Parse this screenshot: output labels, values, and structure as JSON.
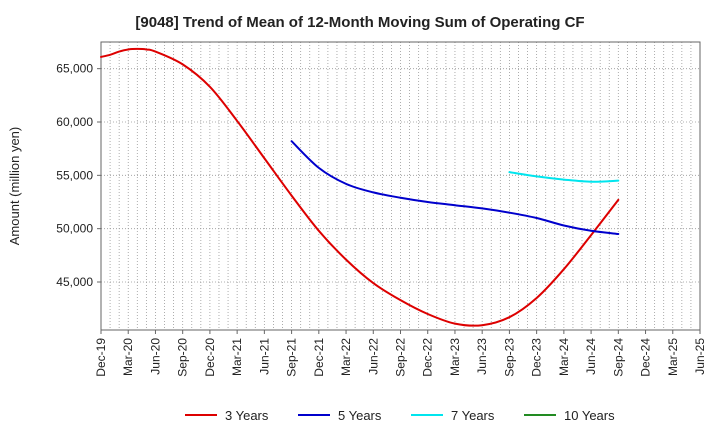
{
  "chart_data": {
    "type": "line",
    "title": "[9048]  Trend of Mean of 12-Month Moving Sum of Operating CF",
    "xlabel": "",
    "ylabel": "Amount (million yen)",
    "ylim": [
      40500,
      67500
    ],
    "yticks": [
      45000,
      50000,
      55000,
      60000,
      65000
    ],
    "ytick_labels": [
      "45,000",
      "50,000",
      "55,000",
      "60,000",
      "65,000"
    ],
    "x_range": [
      0,
      66
    ],
    "xticks": [
      0,
      3,
      6,
      9,
      12,
      15,
      18,
      21,
      24,
      27,
      30,
      33,
      36,
      39,
      42,
      45,
      48,
      51,
      54,
      57,
      60,
      63,
      66
    ],
    "xtick_labels": [
      "Dec-19",
      "Mar-20",
      "Jun-20",
      "Sep-20",
      "Dec-20",
      "Mar-21",
      "Jun-21",
      "Sep-21",
      "Dec-21",
      "Mar-22",
      "Jun-22",
      "Sep-22",
      "Dec-22",
      "Mar-23",
      "Jun-23",
      "Sep-23",
      "Dec-23",
      "Mar-24",
      "Jun-24",
      "Sep-24",
      "Dec-24",
      "Mar-25",
      "Jun-25"
    ],
    "grid": true,
    "legend_position": "bottom",
    "series": [
      {
        "name": "3 Years",
        "color": "#dd0000",
        "x": [
          0,
          1,
          2,
          3,
          4,
          5,
          6,
          9,
          12,
          15,
          18,
          21,
          24,
          27,
          30,
          33,
          36,
          39,
          42,
          45,
          48,
          51,
          54,
          57
        ],
        "values": [
          66100,
          66300,
          66600,
          66800,
          66850,
          66800,
          66600,
          65400,
          63300,
          60100,
          56600,
          53100,
          49800,
          47100,
          44900,
          43300,
          42000,
          41100,
          40950,
          41700,
          43500,
          46200,
          49400,
          52700
        ]
      },
      {
        "name": "5 Years",
        "color": "#0000cc",
        "x": [
          21,
          24,
          27,
          30,
          33,
          36,
          39,
          42,
          45,
          48,
          51,
          54,
          57
        ],
        "values": [
          58200,
          55700,
          54200,
          53400,
          52900,
          52500,
          52200,
          51900,
          51500,
          51000,
          50300,
          49800,
          49500
        ]
      },
      {
        "name": "7 Years",
        "color": "#00e5ee",
        "x": [
          45,
          48,
          51,
          54,
          57
        ],
        "values": [
          55300,
          54900,
          54600,
          54400,
          54500
        ]
      },
      {
        "name": "10 Years",
        "color": "#228b22",
        "x": [],
        "values": []
      }
    ]
  }
}
